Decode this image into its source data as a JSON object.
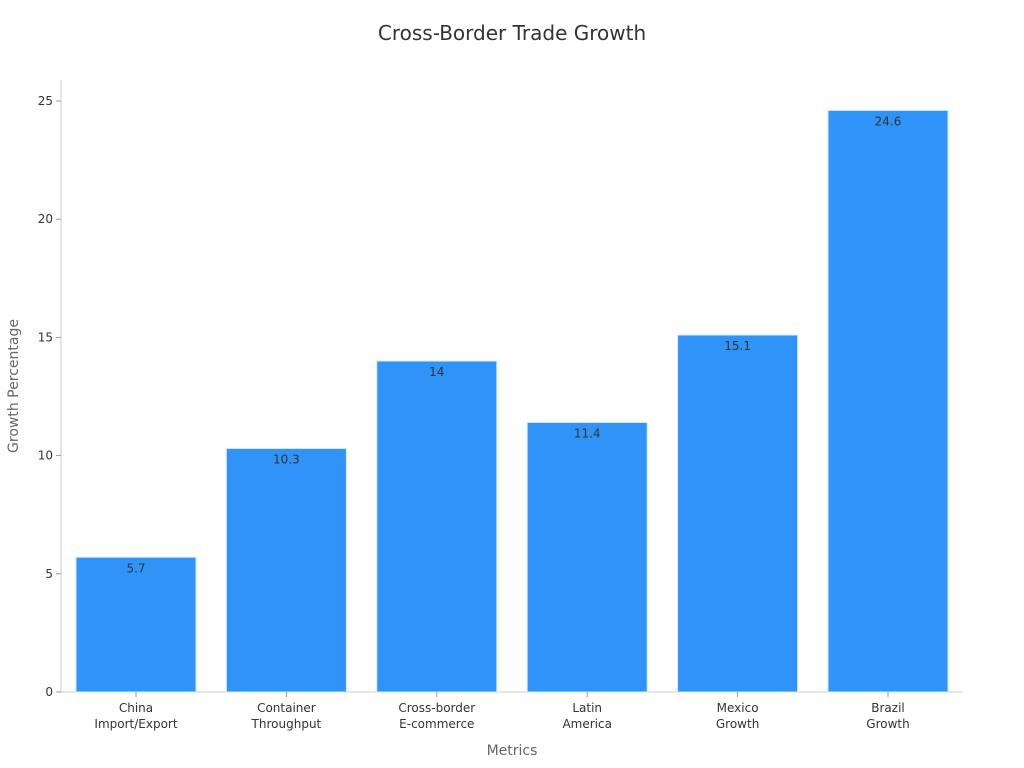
{
  "chart_data": {
    "type": "bar",
    "title": "Cross-Border Trade Growth",
    "xlabel": "Metrics",
    "ylabel": "Growth Percentage",
    "categories": [
      [
        "China",
        "Import/Export"
      ],
      [
        "Container",
        "Throughput"
      ],
      [
        "Cross-border",
        "E-commerce"
      ],
      [
        "Latin",
        "America"
      ],
      [
        "Mexico",
        "Growth"
      ],
      [
        "Brazil",
        "Growth"
      ]
    ],
    "values": [
      5.7,
      10.3,
      14,
      11.4,
      15.1,
      24.6
    ],
    "value_labels": [
      "5.7",
      "10.3",
      "14",
      "11.4",
      "15.1",
      "24.6"
    ],
    "ylim": [
      0,
      26
    ],
    "yticks": [
      0,
      5,
      10,
      15,
      20,
      25
    ],
    "grid": false,
    "legend": "none",
    "bar_color": "#2f93f8",
    "bar_edge_color": "#d4e6fa"
  }
}
